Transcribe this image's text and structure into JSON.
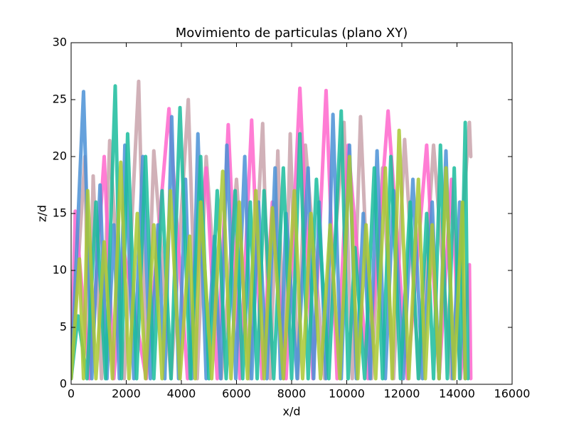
{
  "chart_data": {
    "type": "line",
    "title": "Movimiento de particulas (plano XY)",
    "x_label": "x/d",
    "y_label": "z/d",
    "xlim": [
      0,
      16000
    ],
    "xticks": [
      0,
      2000,
      4000,
      6000,
      8000,
      10000,
      12000,
      14000,
      16000
    ],
    "ylim": [
      0,
      30
    ],
    "yticks": [
      0,
      5,
      10,
      15,
      20,
      25,
      30
    ],
    "grid": false,
    "series": [
      {
        "color": "#c9a3ab",
        "x": [
          0,
          500,
          650,
          800,
          1100,
          1400,
          1925,
          2450,
          2725,
          3000,
          3625,
          4250,
          4575,
          4900,
          5450,
          6000,
          6475,
          6950,
          7225,
          7500,
          7725,
          7950,
          8225,
          8500,
          9200,
          9900,
          10200,
          10500,
          10900,
          11300,
          11700,
          12100,
          12625,
          13150,
          13800,
          14450,
          14500
        ],
        "values": [
          0.5,
          20,
          0.5,
          18.3,
          0.5,
          21.4,
          0.5,
          26.6,
          0.5,
          20.5,
          0.5,
          25,
          0.5,
          20,
          0.5,
          18,
          0.5,
          22.9,
          0.5,
          20.5,
          0.5,
          22,
          0.5,
          21,
          0.5,
          23,
          0.5,
          23.5,
          0.5,
          19,
          0.5,
          21.5,
          0.5,
          21,
          0.5,
          23,
          20
        ]
      },
      {
        "color": "#ff66cc",
        "x": [
          0,
          150,
          675,
          1200,
          1550,
          1900,
          2725,
          3550,
          4225,
          4900,
          5300,
          5700,
          6125,
          6550,
          6925,
          7300,
          7800,
          8300,
          8775,
          9250,
          9650,
          10050,
          10775,
          11500,
          12200,
          12900,
          13350,
          13800,
          14125,
          14450,
          14500
        ],
        "values": [
          0.5,
          15.2,
          0.5,
          20,
          0.5,
          12,
          0.5,
          24.2,
          0.5,
          19,
          0.5,
          22.8,
          0.5,
          23.2,
          0.5,
          16,
          0.5,
          26,
          0.5,
          25.8,
          0.5,
          21,
          0.5,
          24,
          0.5,
          21,
          0.5,
          18,
          0.5,
          10.5,
          0.5
        ]
      },
      {
        "color": "#4a90d6",
        "x": [
          0,
          450,
          750,
          1050,
          1300,
          1550,
          1750,
          1950,
          2275,
          2600,
          2875,
          3150,
          3400,
          3650,
          3900,
          4150,
          4375,
          4600,
          4900,
          5200,
          5425,
          5650,
          5975,
          6300,
          6550,
          6800,
          7100,
          7400,
          7600,
          7800,
          8200,
          8600,
          8800,
          9000,
          9250,
          9500,
          9800,
          10100,
          10350,
          10600,
          10850,
          11100,
          11400,
          11700,
          12050,
          12400,
          12750,
          13100,
          13350,
          13600,
          13850,
          14100,
          14300
        ],
        "values": [
          0.5,
          25.7,
          0.5,
          17.5,
          0.5,
          14,
          0.5,
          21,
          0.5,
          20,
          0.5,
          14,
          0.5,
          23.5,
          0.5,
          18,
          0.5,
          22,
          0.5,
          13,
          0.5,
          21,
          0.5,
          20,
          0.5,
          16,
          0.5,
          19,
          0.5,
          15,
          0.5,
          19,
          0.5,
          16,
          0.5,
          23.7,
          0.5,
          21,
          0.5,
          15,
          0.5,
          20.5,
          0.5,
          17,
          0.5,
          18,
          0.5,
          16,
          0.5,
          20.5,
          0.5,
          16,
          0.5
        ]
      },
      {
        "color": "#1abc9c",
        "x": [
          0,
          250,
          575,
          900,
          1250,
          1600,
          1825,
          2050,
          2375,
          2700,
          3000,
          3300,
          3625,
          3950,
          4325,
          4700,
          5000,
          5300,
          5625,
          5950,
          6225,
          6500,
          6750,
          7000,
          7350,
          7700,
          8000,
          8300,
          8600,
          8900,
          9350,
          9800,
          10050,
          10300,
          10650,
          11000,
          11300,
          11600,
          11950,
          12300,
          12600,
          12900,
          13150,
          13400,
          13650,
          13900,
          14100,
          14300,
          14400
        ],
        "values": [
          0.5,
          6,
          0.5,
          16,
          0.5,
          26.2,
          0.5,
          22,
          0.5,
          20,
          0.5,
          17,
          0.5,
          24.3,
          0.5,
          20,
          0.5,
          17,
          0.5,
          17,
          0.5,
          16,
          0.5,
          17,
          0.5,
          19,
          0.5,
          22,
          0.5,
          18,
          0.5,
          24,
          0.5,
          12,
          0.5,
          19,
          0.5,
          20,
          0.5,
          16,
          0.5,
          15,
          0.5,
          21,
          0.5,
          19,
          0.5,
          23,
          0.5
        ]
      },
      {
        "color": "#a9c832",
        "x": [
          0,
          300,
          450,
          600,
          900,
          1200,
          1500,
          1800,
          2100,
          2400,
          2700,
          3000,
          3300,
          3600,
          3950,
          4300,
          4500,
          4700,
          5100,
          5500,
          5800,
          6100,
          6400,
          6700,
          7000,
          7300,
          7700,
          8100,
          8400,
          8700,
          9050,
          9400,
          9750,
          10100,
          10400,
          10700,
          11050,
          11400,
          11650,
          11900,
          12250,
          12600,
          12850,
          13100,
          13350,
          13600,
          13900,
          14200,
          14300
        ],
        "values": [
          0.5,
          11,
          0.5,
          17,
          0.5,
          12.5,
          0.5,
          19.5,
          0.5,
          15,
          0.5,
          14,
          0.5,
          17,
          0.5,
          13,
          0.5,
          16,
          0.5,
          18.7,
          0.5,
          16,
          0.5,
          17,
          0.5,
          15.5,
          0.5,
          17,
          0.5,
          15,
          0.5,
          14,
          0.5,
          20,
          0.5,
          14,
          0.5,
          19,
          0.5,
          22.3,
          0.5,
          18,
          0.5,
          14,
          0.5,
          19,
          0.5,
          16,
          0.5
        ]
      }
    ]
  }
}
